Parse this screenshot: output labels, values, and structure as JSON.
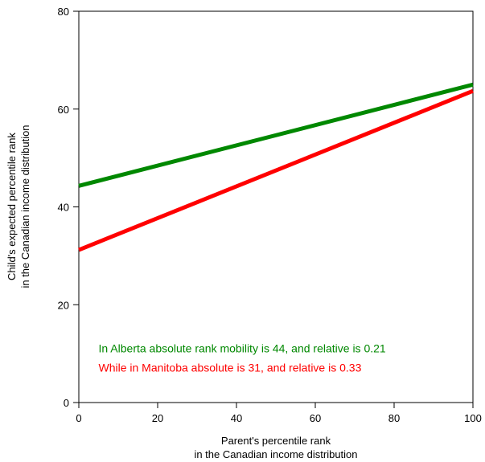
{
  "chart_data": {
    "type": "line",
    "xlabel_lines": [
      "Parent's percentile rank",
      "in the Canadian income distribution"
    ],
    "ylabel_lines": [
      "Child's expected percentile rank",
      "in the Canadian income distribution"
    ],
    "xlim": [
      0,
      100
    ],
    "ylim": [
      0,
      80
    ],
    "x_ticks": [
      0,
      20,
      40,
      60,
      80,
      100
    ],
    "y_ticks": [
      0,
      20,
      40,
      60,
      80
    ],
    "x_tick_labels": [
      "0",
      "20",
      "40",
      "60",
      "80",
      "100"
    ],
    "y_tick_labels": [
      "0",
      "20",
      "40",
      "60",
      "80"
    ],
    "grid": false,
    "series": [
      {
        "x": [
          0,
          100
        ],
        "values": [
          44.3,
          65.0
        ],
        "color": "#008800"
      },
      {
        "x": [
          0,
          100
        ],
        "values": [
          31.2,
          63.7
        ],
        "color": "#ff0000"
      }
    ],
    "annotations": [
      {
        "text": "In Alberta absolute rank mobility is 44, and relative is 0.21",
        "color": "#008800",
        "x": 5,
        "y": 10.3
      },
      {
        "text": "While in Manitoba absolute is 31, and relative is 0.33",
        "color": "#ff0000",
        "x": 5,
        "y": 6.3
      }
    ]
  }
}
